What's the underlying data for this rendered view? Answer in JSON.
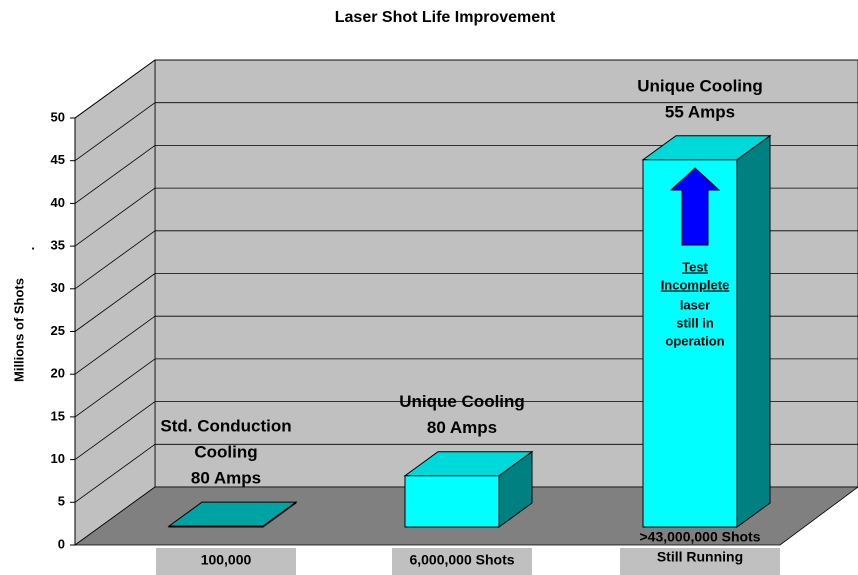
{
  "chart_data": {
    "type": "bar3d",
    "title": "Laser Shot Life Improvement",
    "y_label": "Millions of Shots",
    "y_label_mark": ".",
    "categories": [
      [
        "Std. Conduction",
        "Cooling",
        "80 Amps"
      ],
      [
        "Unique Cooling",
        "80 Amps"
      ],
      [
        "Unique Cooling",
        "55 Amps"
      ]
    ],
    "values": [
      0.1,
      6,
      43
    ],
    "value_labels": [
      [
        "100,000"
      ],
      [
        "6,000,000 Shots"
      ],
      [
        ">43,000,000 Shots",
        "Still Running"
      ]
    ],
    "colors": [
      "#00c0c0",
      "#00ffff",
      "#00ffff"
    ],
    "ylim": [
      0,
      50
    ],
    "yticks": [
      0,
      5,
      10,
      15,
      20,
      25,
      30,
      35,
      40,
      45,
      50
    ],
    "grid": true,
    "annotation": {
      "underlined": [
        "Test",
        "Incomplete"
      ],
      "lines": [
        "laser",
        "still in",
        "operation"
      ],
      "arrow_color": "#0000ff"
    }
  }
}
